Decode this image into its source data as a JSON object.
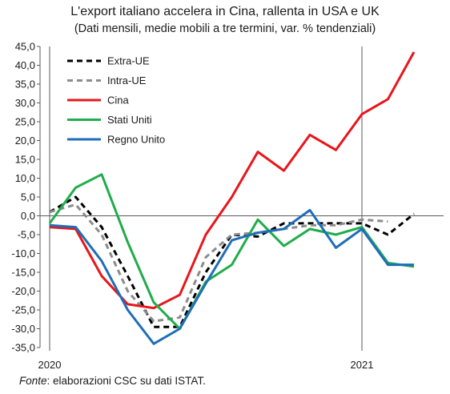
{
  "header": {
    "title": "L'export italiano accelera in Cina, rallenta in USA e UK",
    "subtitle": "(Dati mensili, medie mobili a tre termini, var. % tendenziali)"
  },
  "footer": {
    "source_label": "Fonte",
    "source_text": ": elaborazioni CSC su dati ISTAT."
  },
  "chart_data": {
    "type": "line",
    "title": "L'export italiano accelera in Cina, rallenta in USA e UK",
    "subtitle": "(Dati mensili, medie mobili a tre termini, var. % tendenziali)",
    "ylim": [
      -35,
      45
    ],
    "yticks": [
      45,
      40,
      35,
      30,
      25,
      20,
      15,
      10,
      5,
      0,
      -5,
      -10,
      -15,
      -20,
      -25,
      -30,
      -35
    ],
    "ytick_labels": [
      "45,0",
      "40,0",
      "35,0",
      "30,0",
      "25,0",
      "20,0",
      "15,0",
      "10,0",
      "5,0",
      "0,0",
      "-5,0",
      "-10,0",
      "-15,0",
      "-20,0",
      "-25,0",
      "-30,0",
      "-35,0"
    ],
    "x": [
      "2020-01",
      "2020-02",
      "2020-03",
      "2020-04",
      "2020-05",
      "2020-06",
      "2020-07",
      "2020-08",
      "2020-09",
      "2020-10",
      "2020-11",
      "2020-12",
      "2021-01",
      "2021-02",
      "2021-03",
      "2021-04",
      "2021-05"
    ],
    "xtick_labels": [
      {
        "label": "2020",
        "x": "2020-01"
      },
      {
        "label": "2021",
        "x": "2021-01"
      }
    ],
    "grid": false,
    "legend_position": "top-left",
    "series": [
      {
        "name": "Extra-UE",
        "color": "#000000",
        "style": "dashed",
        "values": [
          1.0,
          5.0,
          -3.0,
          -16.0,
          -29.5,
          -29.5,
          -15.0,
          -5.0,
          -5.5,
          -2.0,
          -2.0,
          -2.0,
          -2.0,
          -5.0,
          0.5,
          null,
          null
        ]
      },
      {
        "name": "Intra-UE",
        "color": "#8c8c8c",
        "style": "dashed",
        "values": [
          1.0,
          3.0,
          -5.0,
          -20.0,
          -28.0,
          -27.0,
          -11.0,
          -5.0,
          -4.5,
          -3.5,
          -2.5,
          -2.5,
          -1.0,
          -1.5,
          null,
          null,
          null
        ]
      },
      {
        "name": "Cina",
        "color": "#e8161b",
        "style": "solid",
        "values": [
          -3.0,
          -3.5,
          -16.0,
          -23.5,
          -24.5,
          -21.0,
          -5.0,
          5.0,
          17.0,
          12.0,
          21.5,
          17.5,
          27.0,
          31.0,
          43.5,
          null,
          null
        ]
      },
      {
        "name": "Stati Uniti",
        "color": "#1fad4b",
        "style": "solid",
        "values": [
          -2.0,
          7.5,
          11.0,
          -7.0,
          -23.0,
          -30.0,
          -17.5,
          -13.0,
          -1.0,
          -8.0,
          -3.5,
          -5.0,
          -3.0,
          -12.5,
          -13.5,
          null,
          null
        ]
      },
      {
        "name": "Regno Unito",
        "color": "#1f6eb8",
        "style": "solid",
        "values": [
          -2.5,
          -3.0,
          -12.0,
          -25.0,
          -34.0,
          -30.0,
          -18.0,
          -6.5,
          -4.5,
          -3.5,
          1.5,
          -8.5,
          -3.5,
          -13.0,
          -13.0,
          null,
          null
        ]
      }
    ]
  }
}
